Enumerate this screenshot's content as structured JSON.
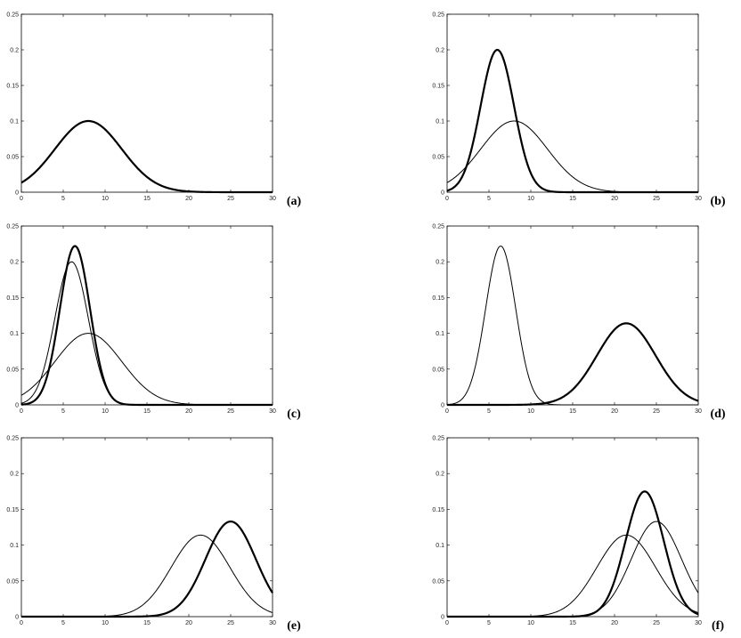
{
  "chart_data": [
    {
      "type": "line",
      "panel_label": "(a)",
      "xlim": [
        0,
        30
      ],
      "ylim": [
        0,
        0.25
      ],
      "xticks": [
        "0",
        "5",
        "10",
        "15",
        "20",
        "25",
        "30"
      ],
      "yticks": [
        "0",
        "0.05",
        "0.1",
        "0.15",
        "0.2",
        "0.25"
      ],
      "grid": false,
      "series": [
        {
          "style": "thick",
          "mean": 8,
          "peak": 0.1
        }
      ]
    },
    {
      "type": "line",
      "panel_label": "(b)",
      "xlim": [
        0,
        30
      ],
      "ylim": [
        0,
        0.25
      ],
      "xticks": [
        "0",
        "5",
        "10",
        "15",
        "20",
        "25",
        "30"
      ],
      "yticks": [
        "0",
        "0.05",
        "0.1",
        "0.15",
        "0.2",
        "0.25"
      ],
      "grid": false,
      "series": [
        {
          "style": "thin",
          "mean": 8,
          "peak": 0.1
        },
        {
          "style": "thick",
          "mean": 6,
          "peak": 0.2
        }
      ]
    },
    {
      "type": "line",
      "panel_label": "(c)",
      "xlim": [
        0,
        30
      ],
      "ylim": [
        0,
        0.25
      ],
      "xticks": [
        "0",
        "5",
        "10",
        "15",
        "20",
        "25",
        "30"
      ],
      "yticks": [
        "0",
        "0.05",
        "0.1",
        "0.15",
        "0.2",
        "0.25"
      ],
      "grid": false,
      "series": [
        {
          "style": "thin",
          "mean": 8,
          "peak": 0.1
        },
        {
          "style": "thin",
          "mean": 6,
          "peak": 0.2
        },
        {
          "style": "thick",
          "mean": 6.4,
          "peak": 0.222
        }
      ]
    },
    {
      "type": "line",
      "panel_label": "(d)",
      "xlim": [
        0,
        30
      ],
      "ylim": [
        0,
        0.25
      ],
      "xticks": [
        "0",
        "5",
        "10",
        "15",
        "20",
        "25",
        "30"
      ],
      "yticks": [
        "0",
        "0.05",
        "0.1",
        "0.15",
        "0.2",
        "0.25"
      ],
      "grid": false,
      "series": [
        {
          "style": "thin",
          "mean": 6.4,
          "peak": 0.222
        },
        {
          "style": "thick",
          "mean": 21.4,
          "peak": 0.114
        }
      ]
    },
    {
      "type": "line",
      "panel_label": "(e)",
      "xlim": [
        0,
        30
      ],
      "ylim": [
        0,
        0.25
      ],
      "xticks": [
        "0",
        "5",
        "10",
        "15",
        "20",
        "25",
        "30"
      ],
      "yticks": [
        "0",
        "0.05",
        "0.1",
        "0.15",
        "0.2",
        "0.25"
      ],
      "grid": false,
      "series": [
        {
          "style": "thin",
          "mean": 21.4,
          "peak": 0.114
        },
        {
          "style": "thick",
          "mean": 25,
          "peak": 0.133
        }
      ]
    },
    {
      "type": "line",
      "panel_label": "(f)",
      "xlim": [
        0,
        30
      ],
      "ylim": [
        0,
        0.25
      ],
      "xticks": [
        "0",
        "5",
        "10",
        "15",
        "20",
        "25",
        "30"
      ],
      "yticks": [
        "0",
        "0.05",
        "0.1",
        "0.15",
        "0.2",
        "0.25"
      ],
      "grid": false,
      "series": [
        {
          "style": "thin",
          "mean": 21.4,
          "peak": 0.114
        },
        {
          "style": "thin",
          "mean": 25,
          "peak": 0.133
        },
        {
          "style": "thick",
          "mean": 23.6,
          "peak": 0.175
        }
      ]
    }
  ]
}
